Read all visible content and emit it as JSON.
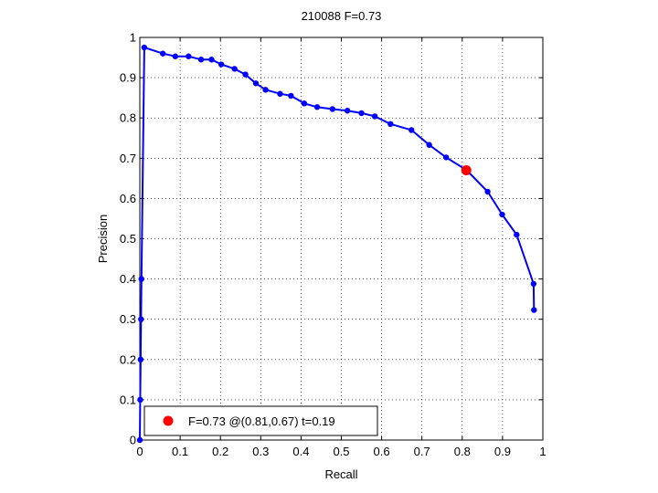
{
  "chart_data": {
    "type": "line",
    "title": "210088 F=0.73",
    "xlabel": "Recall",
    "ylabel": "Precision",
    "xlim": [
      0,
      1
    ],
    "ylim": [
      0,
      1
    ],
    "grid": true,
    "x_ticks": [
      "0",
      "0.1",
      "0.2",
      "0.3",
      "0.4",
      "0.5",
      "0.6",
      "0.7",
      "0.8",
      "0.9",
      "1"
    ],
    "y_ticks": [
      "0",
      "0.1",
      "0.2",
      "0.3",
      "0.4",
      "0.5",
      "0.6",
      "0.7",
      "0.8",
      "0.9",
      "1"
    ],
    "series": [
      {
        "color": "#0000ff",
        "marker": "dot",
        "x": [
          0.0,
          0.001,
          0.002,
          0.003,
          0.004,
          0.011,
          0.057,
          0.088,
          0.121,
          0.152,
          0.178,
          0.202,
          0.235,
          0.262,
          0.288,
          0.312,
          0.348,
          0.375,
          0.408,
          0.44,
          0.478,
          0.515,
          0.55,
          0.583,
          0.622,
          0.674,
          0.718,
          0.76,
          0.811,
          0.863,
          0.899,
          0.935,
          0.977,
          0.978
        ],
        "y": [
          0.0,
          0.1,
          0.2,
          0.3,
          0.4,
          0.975,
          0.96,
          0.953,
          0.953,
          0.945,
          0.945,
          0.933,
          0.922,
          0.908,
          0.886,
          0.87,
          0.86,
          0.855,
          0.836,
          0.827,
          0.822,
          0.818,
          0.812,
          0.804,
          0.785,
          0.77,
          0.733,
          0.702,
          0.67,
          0.617,
          0.56,
          0.51,
          0.388,
          0.323
        ]
      }
    ],
    "highlight_point": {
      "x": 0.81,
      "y": 0.67,
      "color": "#ff0000"
    },
    "legend": {
      "location": "bottom-left",
      "label": "F=0.73 @(0.81,0.67) t=0.19"
    }
  }
}
